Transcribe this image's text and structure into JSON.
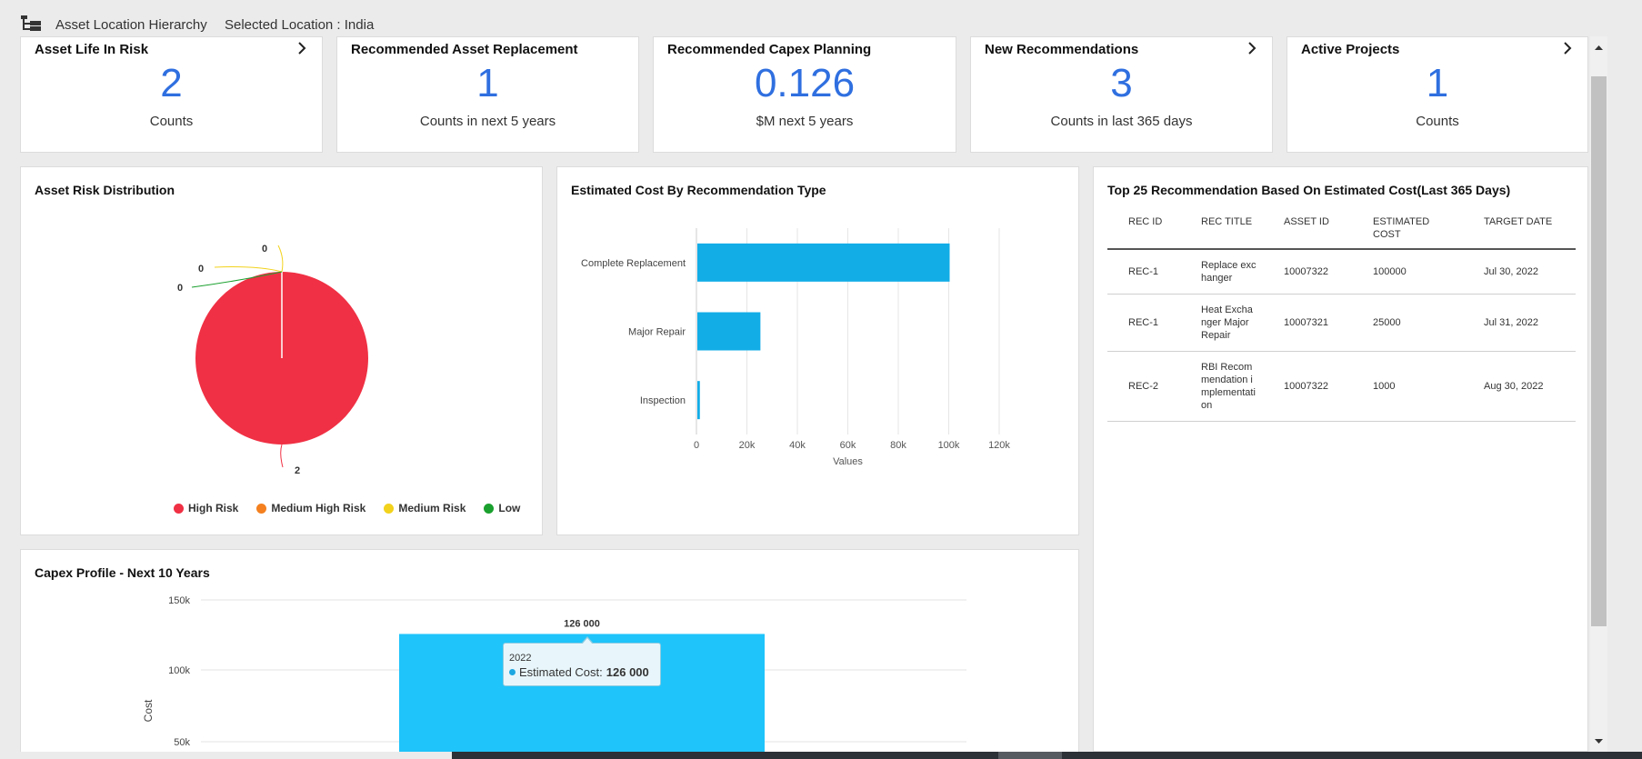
{
  "header": {
    "hierarchy_label": "Asset Location Hierarchy",
    "selected_location": "Selected Location : India"
  },
  "kpis": [
    {
      "title": "Asset Life In Risk",
      "value": "2",
      "sub": "Counts",
      "has_link": true
    },
    {
      "title": "Recommended Asset Replacement",
      "value": "1",
      "sub": "Counts in next 5 years",
      "has_link": false
    },
    {
      "title": "Recommended Capex Planning",
      "value": "0.126",
      "sub": "$M next 5 years",
      "has_link": false
    },
    {
      "title": "New Recommendations",
      "value": "3",
      "sub": "Counts in last 365 days",
      "has_link": true
    },
    {
      "title": "Active Projects",
      "value": "1",
      "sub": "Counts",
      "has_link": true
    }
  ],
  "risk_panel": {
    "title": "Asset Risk Distribution",
    "legend": [
      {
        "label": "High Risk",
        "color": "#f03044"
      },
      {
        "label": "Medium High Risk",
        "color": "#f4801f"
      },
      {
        "label": "Medium Risk",
        "color": "#f2d21c"
      },
      {
        "label": "Low",
        "color": "#1aa02e"
      }
    ]
  },
  "cost_panel": {
    "title": "Estimated Cost By Recommendation Type"
  },
  "top_panel": {
    "title": "Top 25 Recommendation Based On Estimated Cost(Last 365 Days)",
    "columns": [
      "REC ID",
      "REC TITLE",
      "ASSET ID",
      "ESTIMATED COST",
      "TARGET DATE"
    ],
    "rows": [
      {
        "rec_id": "REC-1",
        "title": "Replace exchanger",
        "asset_id": "10007322",
        "cost": "100000",
        "date": "Jul 30, 2022"
      },
      {
        "rec_id": "REC-1",
        "title": "Heat Exchanger Major Repair",
        "asset_id": "10007321",
        "cost": "25000",
        "date": "Jul 31, 2022"
      },
      {
        "rec_id": "REC-2",
        "title": "RBI Recommendation implementation",
        "asset_id": "10007322",
        "cost": "1000",
        "date": "Aug 30, 2022"
      }
    ]
  },
  "capex_panel": {
    "title": "Capex Profile - Next 10 Years",
    "tooltip_year": "2022",
    "tooltip_series": "Estimated Cost:",
    "tooltip_value": "126 000"
  },
  "chart_data": [
    {
      "type": "pie",
      "title": "Asset Risk Distribution",
      "slices": [
        {
          "label": "High Risk",
          "value": 2,
          "color": "#f03044"
        },
        {
          "label": "Medium High Risk",
          "value": 0,
          "color": "#f4801f"
        },
        {
          "label": "Medium Risk",
          "value": 0,
          "color": "#f2d21c"
        },
        {
          "label": "Low",
          "value": 0,
          "color": "#1aa02e"
        }
      ]
    },
    {
      "type": "bar",
      "orientation": "horizontal",
      "title": "Estimated Cost By Recommendation Type",
      "categories": [
        "Complete Replacement",
        "Major Repair",
        "Inspection"
      ],
      "values": [
        100000,
        25000,
        1000
      ],
      "xlabel": "Values",
      "xlim": [
        0,
        120000
      ],
      "x_ticks": [
        "0",
        "20k",
        "40k",
        "60k",
        "80k",
        "100k",
        "120k"
      ],
      "color": "#12ade7",
      "grid": true
    },
    {
      "type": "bar",
      "title": "Capex Profile - Next 10 Years",
      "categories": [
        "2022"
      ],
      "values": [
        126000
      ],
      "data_labels": [
        "126 000"
      ],
      "ylabel": "Cost",
      "y_ticks": [
        "50k",
        "100k",
        "150k"
      ],
      "color": "#1fc4fa",
      "grid": true
    }
  ]
}
